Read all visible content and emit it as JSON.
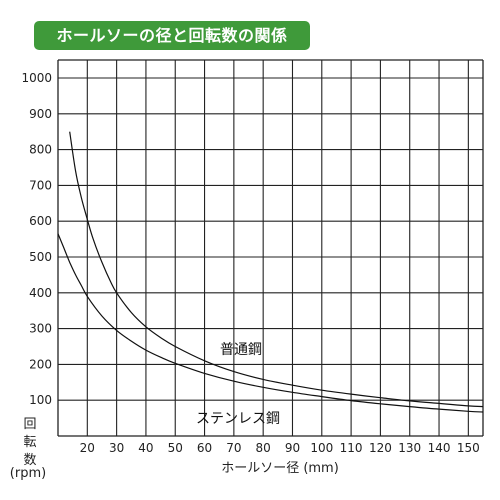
{
  "chart_data": {
    "type": "line",
    "title": "ホールソーの径と回転数の関係",
    "xlabel": "ホールソー径 (mm)",
    "ylabel_lines": [
      "回",
      "転",
      "数",
      "(rpm)"
    ],
    "xlim": [
      10,
      155
    ],
    "ylim": [
      0,
      1000
    ],
    "x_ticks": [
      20,
      30,
      40,
      50,
      60,
      70,
      80,
      90,
      100,
      110,
      120,
      130,
      140,
      150
    ],
    "y_ticks": [
      100,
      200,
      300,
      400,
      500,
      600,
      700,
      800,
      900,
      1000
    ],
    "grid": true,
    "series": [
      {
        "name": "普通鋼",
        "x": [
          14,
          16,
          18,
          20,
          22,
          25,
          28,
          30,
          35,
          40,
          45,
          50,
          60,
          70,
          80,
          90,
          100,
          110,
          120,
          130,
          140,
          150,
          155
        ],
        "y": [
          850,
          740,
          665,
          605,
          550,
          485,
          430,
          400,
          345,
          305,
          275,
          250,
          210,
          180,
          158,
          142,
          128,
          117,
          107,
          98,
          91,
          84,
          82
        ]
      },
      {
        "name": "ステンレス鋼",
        "x": [
          10,
          12,
          14,
          16,
          18,
          20,
          25,
          30,
          35,
          40,
          45,
          50,
          60,
          70,
          80,
          90,
          100,
          110,
          120,
          130,
          140,
          150,
          155
        ],
        "y": [
          565,
          525,
          485,
          450,
          420,
          390,
          335,
          295,
          265,
          240,
          220,
          203,
          175,
          153,
          136,
          122,
          110,
          99,
          90,
          82,
          75,
          69,
          67
        ]
      }
    ]
  }
}
